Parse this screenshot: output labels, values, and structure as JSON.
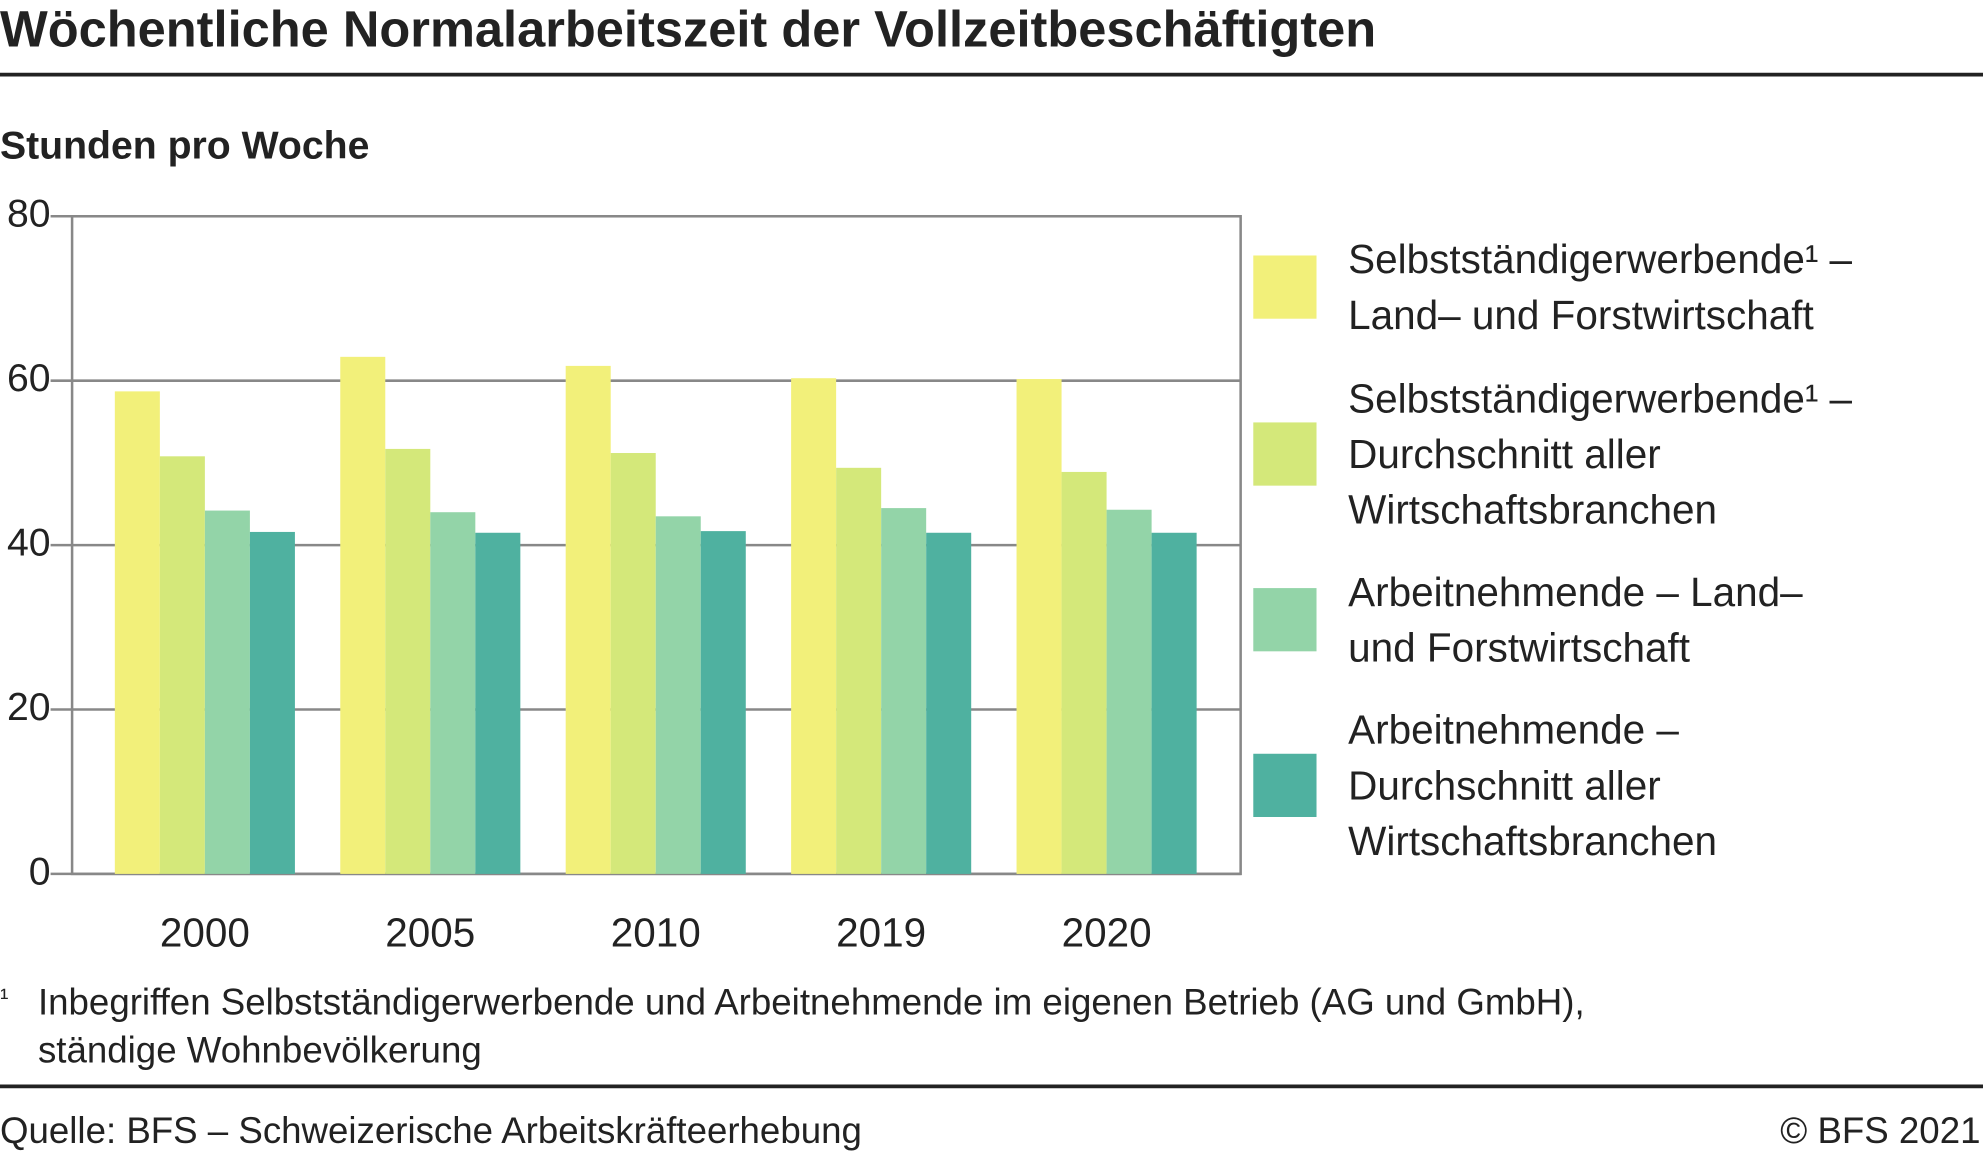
{
  "chart_data": {
    "type": "bar",
    "title": "Wöchentliche Normalarbeitszeit der Vollzeitbeschäftigten",
    "y_axis_label": "Stunden pro Woche",
    "categories": [
      "2000",
      "2005",
      "2010",
      "2019",
      "2020"
    ],
    "series": [
      {
        "name": "Selbstständigerwerbende¹ – Land– und Forstwirtschaft",
        "color": "#f2f07a",
        "values": [
          58.7,
          62.9,
          61.8,
          60.3,
          60.2
        ]
      },
      {
        "name": "Selbstständigerwerbende¹ – Durchschnitt aller Wirtschaftsbranchen",
        "color": "#d4e87a",
        "values": [
          50.8,
          51.7,
          51.2,
          49.4,
          48.9
        ]
      },
      {
        "name": "Arbeitnehmende – Land– und Forstwirtschaft",
        "color": "#93d4a8",
        "values": [
          44.2,
          44.0,
          43.5,
          44.5,
          44.3
        ]
      },
      {
        "name": "Arbeitnehmende – Durchschnitt aller Wirtschaftsbranchen",
        "color": "#4fb1a0",
        "values": [
          41.6,
          41.5,
          41.7,
          41.5,
          41.5
        ]
      }
    ],
    "ylim": [
      0,
      80
    ],
    "yticks": [
      0,
      20,
      40,
      60,
      80
    ],
    "grid": true,
    "footnote_marker": "¹",
    "footnote": "Inbegriffen Selbstständigerwerbende und Arbeitnehmende im eigenen Betrieb (AG und GmbH), ständige Wohnbevölkerung",
    "source": "Quelle:  BFS – Schweizerische Arbeitskräfteerhebung",
    "copyright": "© BFS 2021"
  }
}
